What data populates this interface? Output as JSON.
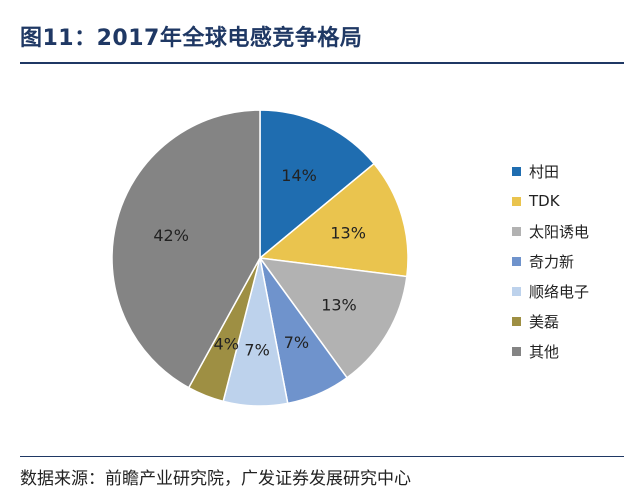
{
  "header": {
    "title": "图11：2017年全球电感竞争格局"
  },
  "footer": {
    "source": "数据来源：前瞻产业研究院，广发证券发展研究中心"
  },
  "chart_data": {
    "type": "pie",
    "title": "图11：2017年全球电感竞争格局",
    "legend_position": "right",
    "start_angle_deg": 0,
    "direction": "clockwise",
    "slices": [
      {
        "name": "村田",
        "value": 14,
        "label": "14%",
        "color": "#1f6db0"
      },
      {
        "name": "TDK",
        "value": 13,
        "label": "13%",
        "color": "#eac44e"
      },
      {
        "name": "太阳诱电",
        "value": 13,
        "label": "13%",
        "color": "#b2b2b2"
      },
      {
        "name": "奇力新",
        "value": 7,
        "label": "7%",
        "color": "#6f93cc"
      },
      {
        "name": "顺络电子",
        "value": 7,
        "label": "7%",
        "color": "#bdd2ec"
      },
      {
        "name": "美磊",
        "value": 4,
        "label": "4%",
        "color": "#9e8f43"
      },
      {
        "name": "其他",
        "value": 42,
        "label": "42%",
        "color": "#848484"
      }
    ]
  }
}
